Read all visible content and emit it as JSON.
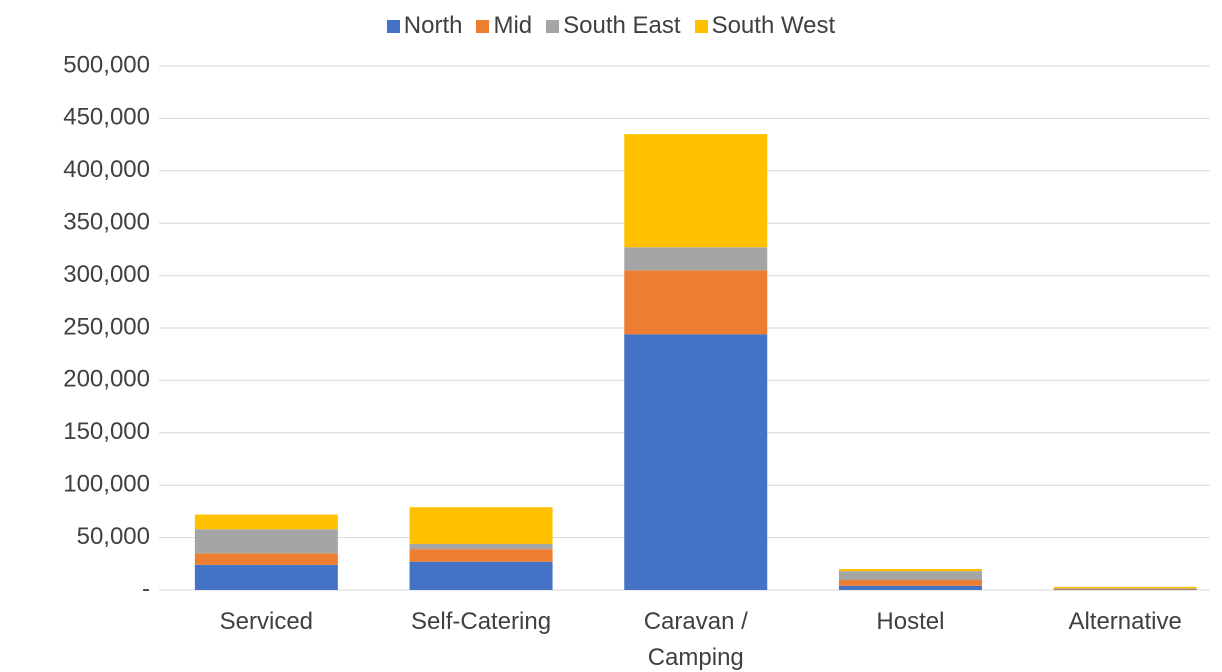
{
  "chart_data": {
    "type": "stacked_bar",
    "categories": [
      "Serviced",
      "Self-Catering",
      "Caravan / Camping",
      "Hostel",
      "Alternative"
    ],
    "series": [
      {
        "name": "North",
        "color": "#4472c4",
        "values": [
          24000,
          27000,
          244000,
          4000,
          500
        ]
      },
      {
        "name": "Mid",
        "color": "#ed7d31",
        "values": [
          11000,
          12000,
          61000,
          5500,
          500
        ]
      },
      {
        "name": "South East",
        "color": "#a5a5a5",
        "values": [
          23000,
          5000,
          22000,
          8500,
          500
        ]
      },
      {
        "name": "South West",
        "color": "#ffc000",
        "values": [
          14000,
          35000,
          108000,
          2000,
          1500
        ]
      }
    ],
    "ylim": [
      0,
      500000
    ],
    "yticks": [
      {
        "value": 0,
        "label": "-"
      },
      {
        "value": 50000,
        "label": "50,000"
      },
      {
        "value": 100000,
        "label": "100,000"
      },
      {
        "value": 150000,
        "label": "150,000"
      },
      {
        "value": 200000,
        "label": "200,000"
      },
      {
        "value": 250000,
        "label": "250,000"
      },
      {
        "value": 300000,
        "label": "300,000"
      },
      {
        "value": 350000,
        "label": "350,000"
      },
      {
        "value": 400000,
        "label": "400,000"
      },
      {
        "value": 450000,
        "label": "450,000"
      },
      {
        "value": 500000,
        "label": "500,000"
      }
    ],
    "grid": true,
    "legend": "top"
  }
}
